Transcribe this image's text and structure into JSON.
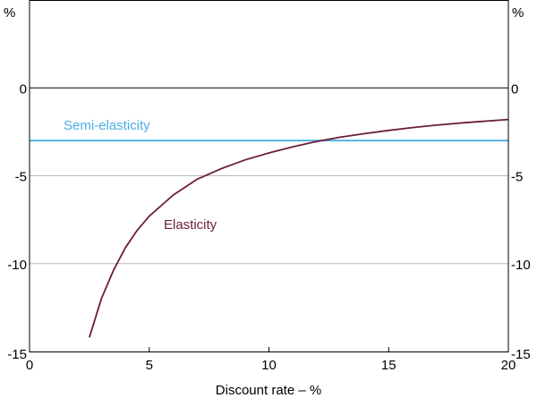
{
  "chart_data": {
    "type": "line",
    "xlabel": "Discount rate – %",
    "ylabel_left": "%",
    "ylabel_right": "%",
    "xlim": [
      0,
      20
    ],
    "ylim": [
      -15,
      5
    ],
    "x_ticks": [
      {
        "value": 0,
        "label": "0"
      },
      {
        "value": 5,
        "label": "5"
      },
      {
        "value": 10,
        "label": "10"
      },
      {
        "value": 15,
        "label": "15"
      },
      {
        "value": 20,
        "label": "20"
      }
    ],
    "y_ticks": [
      {
        "value": 0,
        "label": "0"
      },
      {
        "value": -5,
        "label": "-5"
      },
      {
        "value": -10,
        "label": "-10"
      },
      {
        "value": -15,
        "label": "-15"
      }
    ],
    "grid": "horizontal",
    "zero_line": true,
    "series": [
      {
        "name": "Semi-elasticity",
        "color": "#4aaee3",
        "x": [
          0,
          20
        ],
        "y": [
          -3,
          -3
        ]
      },
      {
        "name": "Elasticity",
        "color": "#6b1e3c",
        "x": [
          2.5,
          3,
          3.5,
          4,
          4.5,
          5,
          6,
          7,
          8,
          9,
          10,
          11,
          12,
          13,
          14,
          15,
          16,
          17,
          18,
          19,
          20
        ],
        "y": [
          -14.2,
          -12.0,
          -10.4,
          -9.1,
          -8.1,
          -7.3,
          -6.1,
          -5.2,
          -4.6,
          -4.1,
          -3.7,
          -3.35,
          -3.05,
          -2.8,
          -2.6,
          -2.42,
          -2.26,
          -2.12,
          -2.0,
          -1.9,
          -1.8
        ]
      }
    ]
  }
}
